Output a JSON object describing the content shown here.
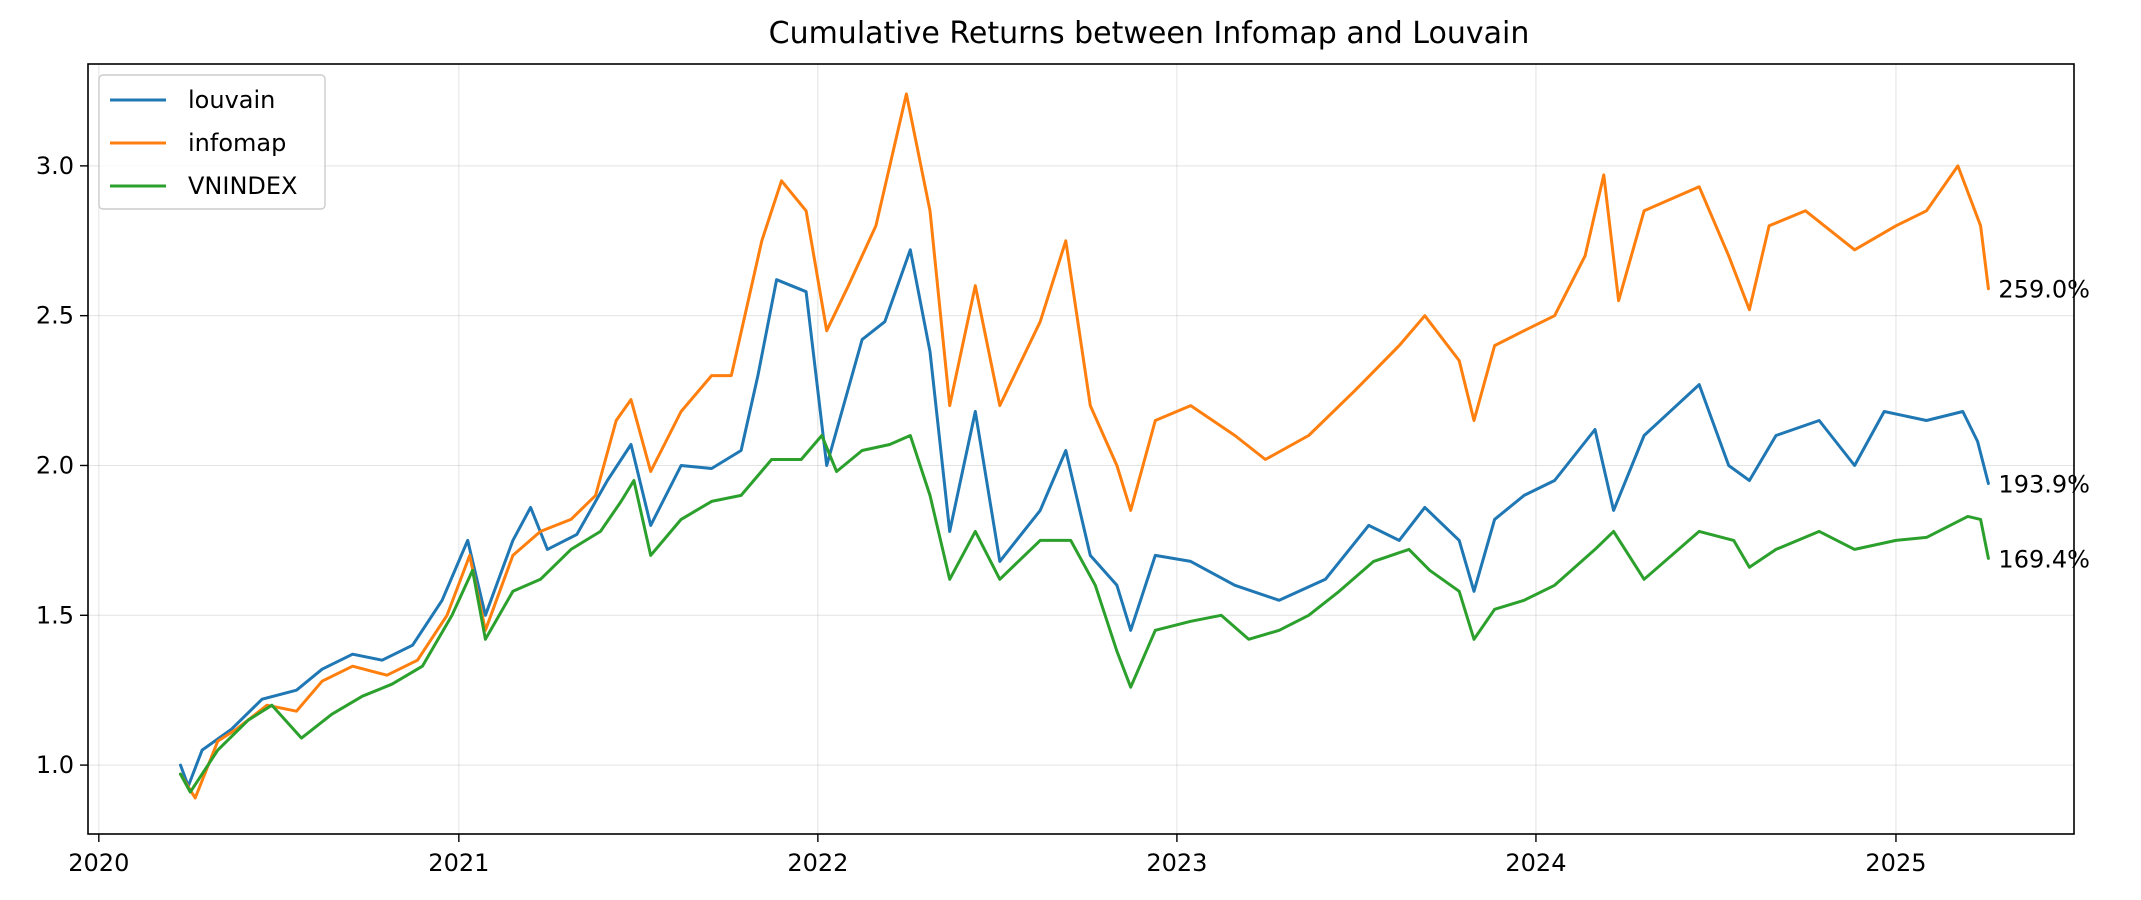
{
  "chart_data": {
    "type": "line",
    "title": "Cumulative Returns between Infomap and Louvain",
    "xlabel": "",
    "ylabel": "",
    "x_ticks": [
      "2020",
      "2021",
      "2022",
      "2023",
      "2024",
      "2025"
    ],
    "y_ticks": [
      "1.0",
      "1.5",
      "2.0",
      "2.5",
      "3.0"
    ],
    "xlim": [
      "2019-12-21",
      "2025-07-01"
    ],
    "ylim": [
      0.77,
      3.34
    ],
    "grid": true,
    "legend_position": "top-left",
    "series": [
      {
        "name": "louvain",
        "color": "#1f77b4",
        "end_label": "193.9%",
        "points": [
          [
            "2020-03-24",
            1.0
          ],
          [
            "2020-04-01",
            0.93
          ],
          [
            "2020-04-15",
            1.05
          ],
          [
            "2020-05-15",
            1.12
          ],
          [
            "2020-06-15",
            1.22
          ],
          [
            "2020-07-20",
            1.25
          ],
          [
            "2020-08-15",
            1.32
          ],
          [
            "2020-09-15",
            1.37
          ],
          [
            "2020-10-15",
            1.35
          ],
          [
            "2020-11-15",
            1.4
          ],
          [
            "2020-12-15",
            1.55
          ],
          [
            "2021-01-10",
            1.75
          ],
          [
            "2021-01-28",
            1.5
          ],
          [
            "2021-02-25",
            1.75
          ],
          [
            "2021-03-15",
            1.86
          ],
          [
            "2021-04-01",
            1.72
          ],
          [
            "2021-05-01",
            1.77
          ],
          [
            "2021-06-01",
            1.95
          ],
          [
            "2021-06-25",
            2.07
          ],
          [
            "2021-07-15",
            1.8
          ],
          [
            "2021-08-15",
            2.0
          ],
          [
            "2021-09-15",
            1.99
          ],
          [
            "2021-10-15",
            2.05
          ],
          [
            "2021-11-01",
            2.3
          ],
          [
            "2021-11-20",
            2.62
          ],
          [
            "2021-12-20",
            2.58
          ],
          [
            "2022-01-10",
            2.0
          ],
          [
            "2022-02-15",
            2.42
          ],
          [
            "2022-03-10",
            2.48
          ],
          [
            "2022-04-05",
            2.72
          ],
          [
            "2022-04-25",
            2.38
          ],
          [
            "2022-05-15",
            1.78
          ],
          [
            "2022-06-10",
            2.18
          ],
          [
            "2022-07-05",
            1.68
          ],
          [
            "2022-08-15",
            1.85
          ],
          [
            "2022-09-10",
            2.05
          ],
          [
            "2022-10-05",
            1.7
          ],
          [
            "2022-11-01",
            1.6
          ],
          [
            "2022-11-15",
            1.45
          ],
          [
            "2022-12-10",
            1.7
          ],
          [
            "2023-01-15",
            1.68
          ],
          [
            "2023-03-01",
            1.6
          ],
          [
            "2023-04-15",
            1.55
          ],
          [
            "2023-06-01",
            1.62
          ],
          [
            "2023-07-15",
            1.8
          ],
          [
            "2023-08-15",
            1.75
          ],
          [
            "2023-09-10",
            1.86
          ],
          [
            "2023-10-15",
            1.75
          ],
          [
            "2023-10-30",
            1.58
          ],
          [
            "2023-11-20",
            1.82
          ],
          [
            "2023-12-20",
            1.9
          ],
          [
            "2024-01-20",
            1.95
          ],
          [
            "2024-03-01",
            2.12
          ],
          [
            "2024-03-20",
            1.85
          ],
          [
            "2024-04-20",
            2.1
          ],
          [
            "2024-06-15",
            2.27
          ],
          [
            "2024-07-15",
            2.0
          ],
          [
            "2024-08-05",
            1.95
          ],
          [
            "2024-09-01",
            2.1
          ],
          [
            "2024-10-15",
            2.15
          ],
          [
            "2024-11-20",
            2.0
          ],
          [
            "2024-12-20",
            2.18
          ],
          [
            "2025-02-01",
            2.15
          ],
          [
            "2025-03-10",
            2.18
          ],
          [
            "2025-03-25",
            2.08
          ],
          [
            "2025-04-05",
            1.94
          ]
        ]
      },
      {
        "name": "infomap",
        "color": "#ff7f0e",
        "end_label": "259.0%",
        "points": [
          [
            "2020-03-24",
            0.97
          ],
          [
            "2020-04-08",
            0.89
          ],
          [
            "2020-05-01",
            1.08
          ],
          [
            "2020-05-20",
            1.12
          ],
          [
            "2020-06-20",
            1.2
          ],
          [
            "2020-07-20",
            1.18
          ],
          [
            "2020-08-15",
            1.28
          ],
          [
            "2020-09-15",
            1.33
          ],
          [
            "2020-10-20",
            1.3
          ],
          [
            "2020-11-20",
            1.35
          ],
          [
            "2020-12-20",
            1.5
          ],
          [
            "2021-01-12",
            1.7
          ],
          [
            "2021-01-28",
            1.45
          ],
          [
            "2021-02-25",
            1.7
          ],
          [
            "2021-03-25",
            1.78
          ],
          [
            "2021-04-25",
            1.82
          ],
          [
            "2021-05-20",
            1.9
          ],
          [
            "2021-06-10",
            2.15
          ],
          [
            "2021-06-25",
            2.22
          ],
          [
            "2021-07-15",
            1.98
          ],
          [
            "2021-08-15",
            2.18
          ],
          [
            "2021-09-15",
            2.3
          ],
          [
            "2021-10-05",
            2.3
          ],
          [
            "2021-11-05",
            2.75
          ],
          [
            "2021-11-25",
            2.95
          ],
          [
            "2021-12-20",
            2.85
          ],
          [
            "2022-01-10",
            2.45
          ],
          [
            "2022-02-01",
            2.6
          ],
          [
            "2022-03-01",
            2.8
          ],
          [
            "2022-04-01",
            3.24
          ],
          [
            "2022-04-25",
            2.85
          ],
          [
            "2022-05-15",
            2.2
          ],
          [
            "2022-06-10",
            2.6
          ],
          [
            "2022-07-05",
            2.2
          ],
          [
            "2022-08-15",
            2.48
          ],
          [
            "2022-09-10",
            2.75
          ],
          [
            "2022-10-05",
            2.2
          ],
          [
            "2022-11-01",
            2.0
          ],
          [
            "2022-11-15",
            1.85
          ],
          [
            "2022-12-10",
            2.15
          ],
          [
            "2023-01-15",
            2.2
          ],
          [
            "2023-03-01",
            2.1
          ],
          [
            "2023-04-01",
            2.02
          ],
          [
            "2023-05-15",
            2.1
          ],
          [
            "2023-07-01",
            2.25
          ],
          [
            "2023-08-15",
            2.4
          ],
          [
            "2023-09-10",
            2.5
          ],
          [
            "2023-10-15",
            2.35
          ],
          [
            "2023-10-30",
            2.15
          ],
          [
            "2023-11-20",
            2.4
          ],
          [
            "2023-12-20",
            2.45
          ],
          [
            "2024-01-20",
            2.5
          ],
          [
            "2024-02-20",
            2.7
          ],
          [
            "2024-03-10",
            2.97
          ],
          [
            "2024-03-25",
            2.55
          ],
          [
            "2024-04-20",
            2.85
          ],
          [
            "2024-06-15",
            2.93
          ],
          [
            "2024-07-15",
            2.7
          ],
          [
            "2024-08-05",
            2.52
          ],
          [
            "2024-08-25",
            2.8
          ],
          [
            "2024-10-01",
            2.85
          ],
          [
            "2024-11-20",
            2.72
          ],
          [
            "2025-01-01",
            2.8
          ],
          [
            "2025-02-01",
            2.85
          ],
          [
            "2025-03-05",
            3.0
          ],
          [
            "2025-03-28",
            2.8
          ],
          [
            "2025-04-05",
            2.59
          ]
        ]
      },
      {
        "name": "VNINDEX",
        "color": "#2ca02c",
        "end_label": "169.4%",
        "points": [
          [
            "2020-03-24",
            0.97
          ],
          [
            "2020-04-03",
            0.91
          ],
          [
            "2020-05-01",
            1.05
          ],
          [
            "2020-06-01",
            1.15
          ],
          [
            "2020-06-25",
            1.2
          ],
          [
            "2020-07-25",
            1.09
          ],
          [
            "2020-08-25",
            1.17
          ],
          [
            "2020-09-25",
            1.23
          ],
          [
            "2020-10-25",
            1.27
          ],
          [
            "2020-11-25",
            1.33
          ],
          [
            "2020-12-25",
            1.5
          ],
          [
            "2021-01-15",
            1.65
          ],
          [
            "2021-01-28",
            1.42
          ],
          [
            "2021-02-25",
            1.58
          ],
          [
            "2021-03-25",
            1.62
          ],
          [
            "2021-04-25",
            1.72
          ],
          [
            "2021-05-25",
            1.78
          ],
          [
            "2021-06-15",
            1.88
          ],
          [
            "2021-06-28",
            1.95
          ],
          [
            "2021-07-15",
            1.7
          ],
          [
            "2021-08-15",
            1.82
          ],
          [
            "2021-09-15",
            1.88
          ],
          [
            "2021-10-15",
            1.9
          ],
          [
            "2021-11-15",
            2.02
          ],
          [
            "2021-12-15",
            2.02
          ],
          [
            "2022-01-05",
            2.1
          ],
          [
            "2022-01-20",
            1.98
          ],
          [
            "2022-02-15",
            2.05
          ],
          [
            "2022-03-15",
            2.07
          ],
          [
            "2022-04-05",
            2.1
          ],
          [
            "2022-04-25",
            1.9
          ],
          [
            "2022-05-15",
            1.62
          ],
          [
            "2022-06-10",
            1.78
          ],
          [
            "2022-07-05",
            1.62
          ],
          [
            "2022-08-15",
            1.75
          ],
          [
            "2022-09-15",
            1.75
          ],
          [
            "2022-10-10",
            1.6
          ],
          [
            "2022-11-01",
            1.38
          ],
          [
            "2022-11-15",
            1.26
          ],
          [
            "2022-12-10",
            1.45
          ],
          [
            "2023-01-15",
            1.48
          ],
          [
            "2023-02-15",
            1.5
          ],
          [
            "2023-03-15",
            1.42
          ],
          [
            "2023-04-15",
            1.45
          ],
          [
            "2023-05-15",
            1.5
          ],
          [
            "2023-06-15",
            1.58
          ],
          [
            "2023-07-20",
            1.68
          ],
          [
            "2023-08-25",
            1.72
          ],
          [
            "2023-09-15",
            1.65
          ],
          [
            "2023-10-15",
            1.58
          ],
          [
            "2023-10-30",
            1.42
          ],
          [
            "2023-11-20",
            1.52
          ],
          [
            "2023-12-20",
            1.55
          ],
          [
            "2024-01-20",
            1.6
          ],
          [
            "2024-03-01",
            1.72
          ],
          [
            "2024-03-20",
            1.78
          ],
          [
            "2024-04-20",
            1.62
          ],
          [
            "2024-06-15",
            1.78
          ],
          [
            "2024-07-20",
            1.75
          ],
          [
            "2024-08-05",
            1.66
          ],
          [
            "2024-09-01",
            1.72
          ],
          [
            "2024-10-15",
            1.78
          ],
          [
            "2024-11-20",
            1.72
          ],
          [
            "2025-01-01",
            1.75
          ],
          [
            "2025-02-01",
            1.76
          ],
          [
            "2025-03-15",
            1.83
          ],
          [
            "2025-03-28",
            1.82
          ],
          [
            "2025-04-05",
            1.69
          ]
        ]
      }
    ]
  }
}
